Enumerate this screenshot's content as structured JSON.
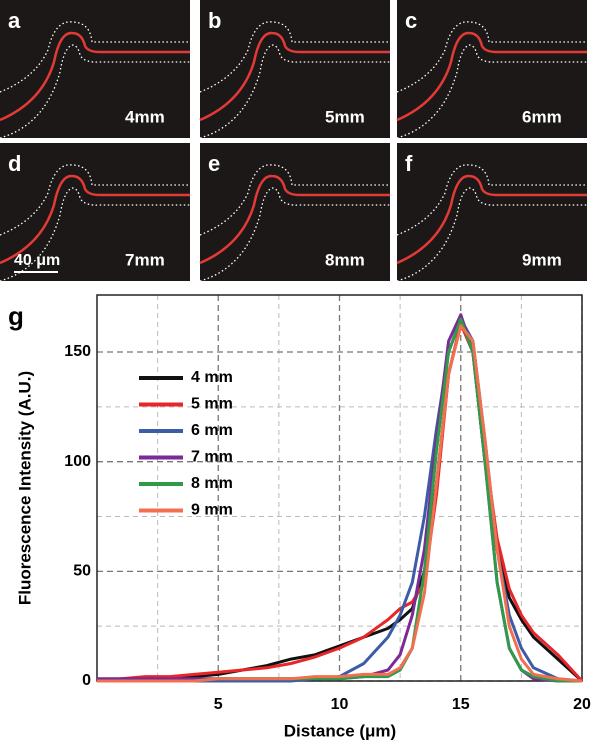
{
  "panels": [
    {
      "letter": "a",
      "label": "4mm"
    },
    {
      "letter": "b",
      "label": "5mm"
    },
    {
      "letter": "c",
      "label": "6mm"
    },
    {
      "letter": "d",
      "label": "7mm"
    },
    {
      "letter": "e",
      "label": "8mm"
    },
    {
      "letter": "f",
      "label": "9mm"
    }
  ],
  "scale_bar": "40 μm",
  "chart_data": {
    "type": "line",
    "panel_label": "g",
    "xlabel": "Distance (μm)",
    "ylabel": "Fluorescence Intensity (A.U.)",
    "x": [
      0,
      1,
      2,
      3,
      4,
      5,
      6,
      7,
      8,
      9,
      10,
      11,
      12,
      12.5,
      13,
      13.5,
      14,
      14.5,
      15,
      15.5,
      16,
      16.5,
      17,
      17.5,
      18,
      19,
      20
    ],
    "series": [
      {
        "name": "4 mm",
        "color": "#111111",
        "values": [
          0,
          0,
          1,
          1,
          2,
          3,
          5,
          7,
          10,
          12,
          16,
          20,
          24,
          28,
          33,
          50,
          90,
          140,
          163,
          150,
          100,
          60,
          38,
          28,
          20,
          10,
          0
        ]
      },
      {
        "name": "5 mm",
        "color": "#e8262a",
        "values": [
          0,
          1,
          2,
          2,
          3,
          4,
          5,
          6,
          8,
          11,
          15,
          20,
          28,
          33,
          36,
          45,
          85,
          140,
          163,
          150,
          105,
          65,
          42,
          30,
          22,
          12,
          0
        ]
      },
      {
        "name": "6 mm",
        "color": "#3c5ca8",
        "values": [
          0,
          0,
          0,
          0,
          0,
          0,
          0,
          0,
          0,
          1,
          2,
          8,
          20,
          30,
          45,
          75,
          115,
          150,
          165,
          155,
          110,
          60,
          30,
          15,
          6,
          1,
          0
        ]
      },
      {
        "name": "7 mm",
        "color": "#7b2a96",
        "values": [
          1,
          1,
          1,
          1,
          1,
          1,
          1,
          1,
          1,
          1,
          1,
          2,
          5,
          12,
          30,
          60,
          110,
          155,
          167,
          150,
          100,
          45,
          15,
          5,
          1,
          0,
          0
        ]
      },
      {
        "name": "8 mm",
        "color": "#2e9a4a",
        "values": [
          0,
          0,
          0,
          0,
          0,
          1,
          1,
          1,
          1,
          1,
          1,
          2,
          2,
          5,
          15,
          50,
          105,
          150,
          165,
          150,
          100,
          45,
          15,
          5,
          2,
          0,
          0
        ]
      },
      {
        "name": "9 mm",
        "color": "#f07050",
        "values": [
          0,
          0,
          0,
          0,
          0,
          1,
          1,
          1,
          1,
          2,
          2,
          3,
          3,
          6,
          15,
          40,
          90,
          140,
          162,
          155,
          110,
          60,
          25,
          10,
          3,
          1,
          0
        ]
      }
    ],
    "xlim": [
      0,
      20
    ],
    "ylim": [
      0,
      176
    ],
    "xticks": [
      5,
      10,
      15,
      20
    ],
    "yticks": [
      0,
      50,
      100,
      150
    ],
    "x_minor_ticks": [
      2.5,
      7.5,
      12.5,
      17.5
    ],
    "y_minor_ticks": [
      25,
      75,
      125
    ],
    "grid": true,
    "legend": "upper left"
  }
}
